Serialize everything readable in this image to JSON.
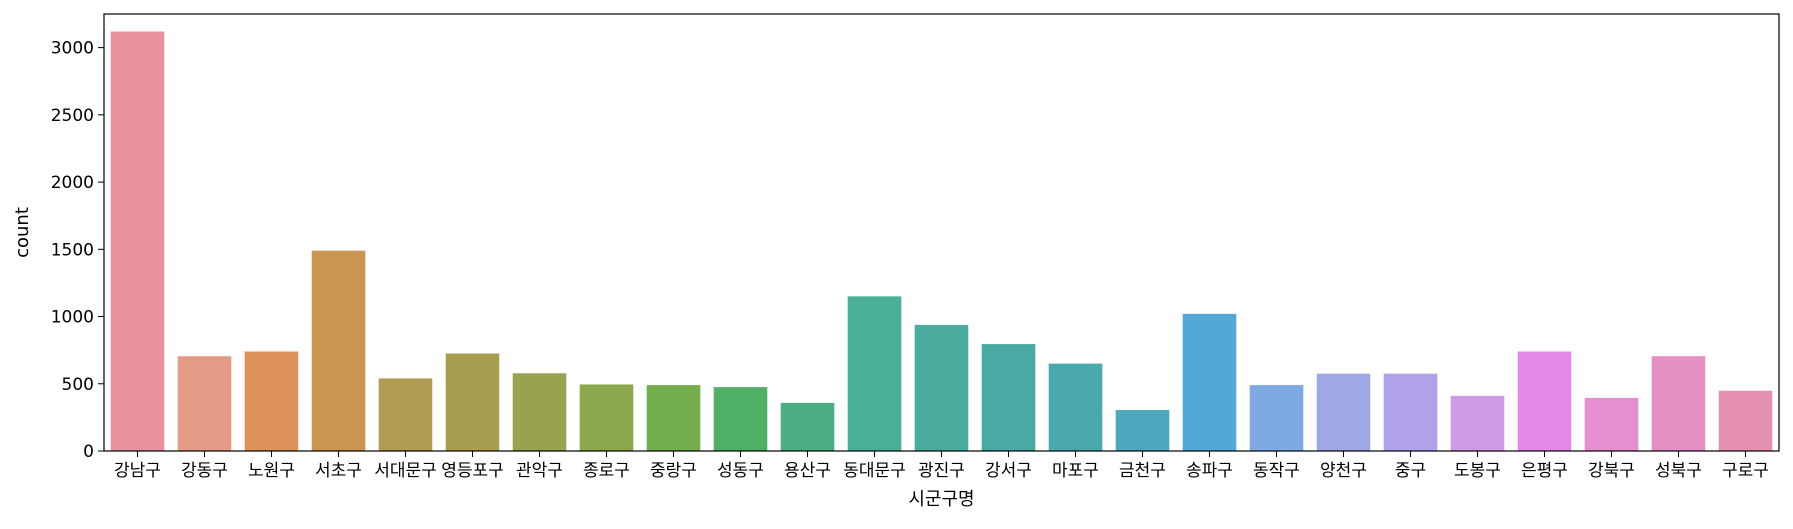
{
  "chart_data": {
    "type": "bar",
    "title": "",
    "xlabel": "시군구명",
    "ylabel": "count",
    "ylim": [
      0,
      3250
    ],
    "yticks": [
      0,
      500,
      1000,
      1500,
      2000,
      2500,
      3000
    ],
    "grid": false,
    "legend": "none",
    "categories": [
      "강남구",
      "강동구",
      "노원구",
      "서초구",
      "서대문구",
      "영등포구",
      "관악구",
      "종로구",
      "중랑구",
      "성동구",
      "용산구",
      "동대문구",
      "광진구",
      "강서구",
      "마포구",
      "금천구",
      "송파구",
      "동작구",
      "양천구",
      "중구",
      "도봉구",
      "은평구",
      "강북구",
      "성북구",
      "구로구"
    ],
    "values": [
      3120,
      705,
      740,
      1490,
      540,
      725,
      578,
      495,
      490,
      475,
      358,
      1150,
      938,
      795,
      650,
      305,
      1020,
      490,
      575,
      575,
      410,
      740,
      395,
      705,
      448
    ],
    "colors": [
      "#e8919e",
      "#e49b86",
      "#dd925b",
      "#c99550",
      "#b19c53",
      "#a79e4f",
      "#99a24f",
      "#8ca84d",
      "#72ae4c",
      "#4fb065",
      "#4bae82",
      "#4aaf97",
      "#4aac9e",
      "#49aaa4",
      "#4aa9af",
      "#4ca8bd",
      "#52a8d6",
      "#7ea9e3",
      "#9ea8e4",
      "#b1a1ea",
      "#cf9be6",
      "#e588e7",
      "#e58ed0",
      "#e58fc4",
      "#e590b3"
    ]
  }
}
